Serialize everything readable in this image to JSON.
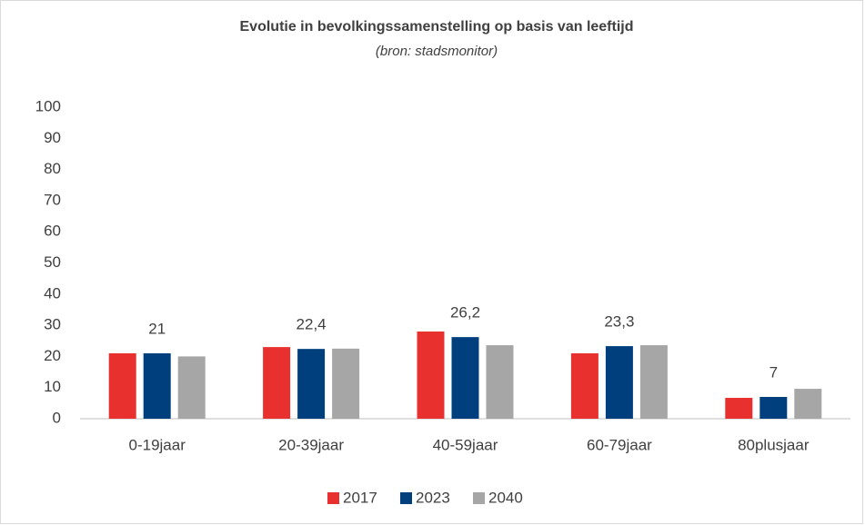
{
  "chart_data": {
    "type": "bar",
    "title": "Evolutie in bevolkingssamenstelling op basis van leeftijd",
    "subtitle": "(bron: stadsmonitor)",
    "categories": [
      "0-19jaar",
      "20-39jaar",
      "40-59jaar",
      "60-79jaar",
      "80plusjaar"
    ],
    "series": [
      {
        "name": "2017",
        "color": "#e8312f",
        "values": [
          21,
          23,
          28,
          21,
          6.7
        ]
      },
      {
        "name": "2023",
        "color": "#003f7d",
        "values": [
          21,
          22.4,
          26.2,
          23.3,
          7
        ],
        "value_labels": [
          "21",
          "22,4",
          "26,2",
          "23,3",
          "7"
        ]
      },
      {
        "name": "2040",
        "color": "#a6a6a6",
        "values": [
          20,
          22.5,
          23.6,
          23.6,
          9.6
        ]
      }
    ],
    "ylim": [
      0,
      100
    ],
    "yticks": [
      0,
      10,
      20,
      30,
      40,
      50,
      60,
      70,
      80,
      90,
      100
    ],
    "grid": false,
    "legend": "bottom"
  }
}
